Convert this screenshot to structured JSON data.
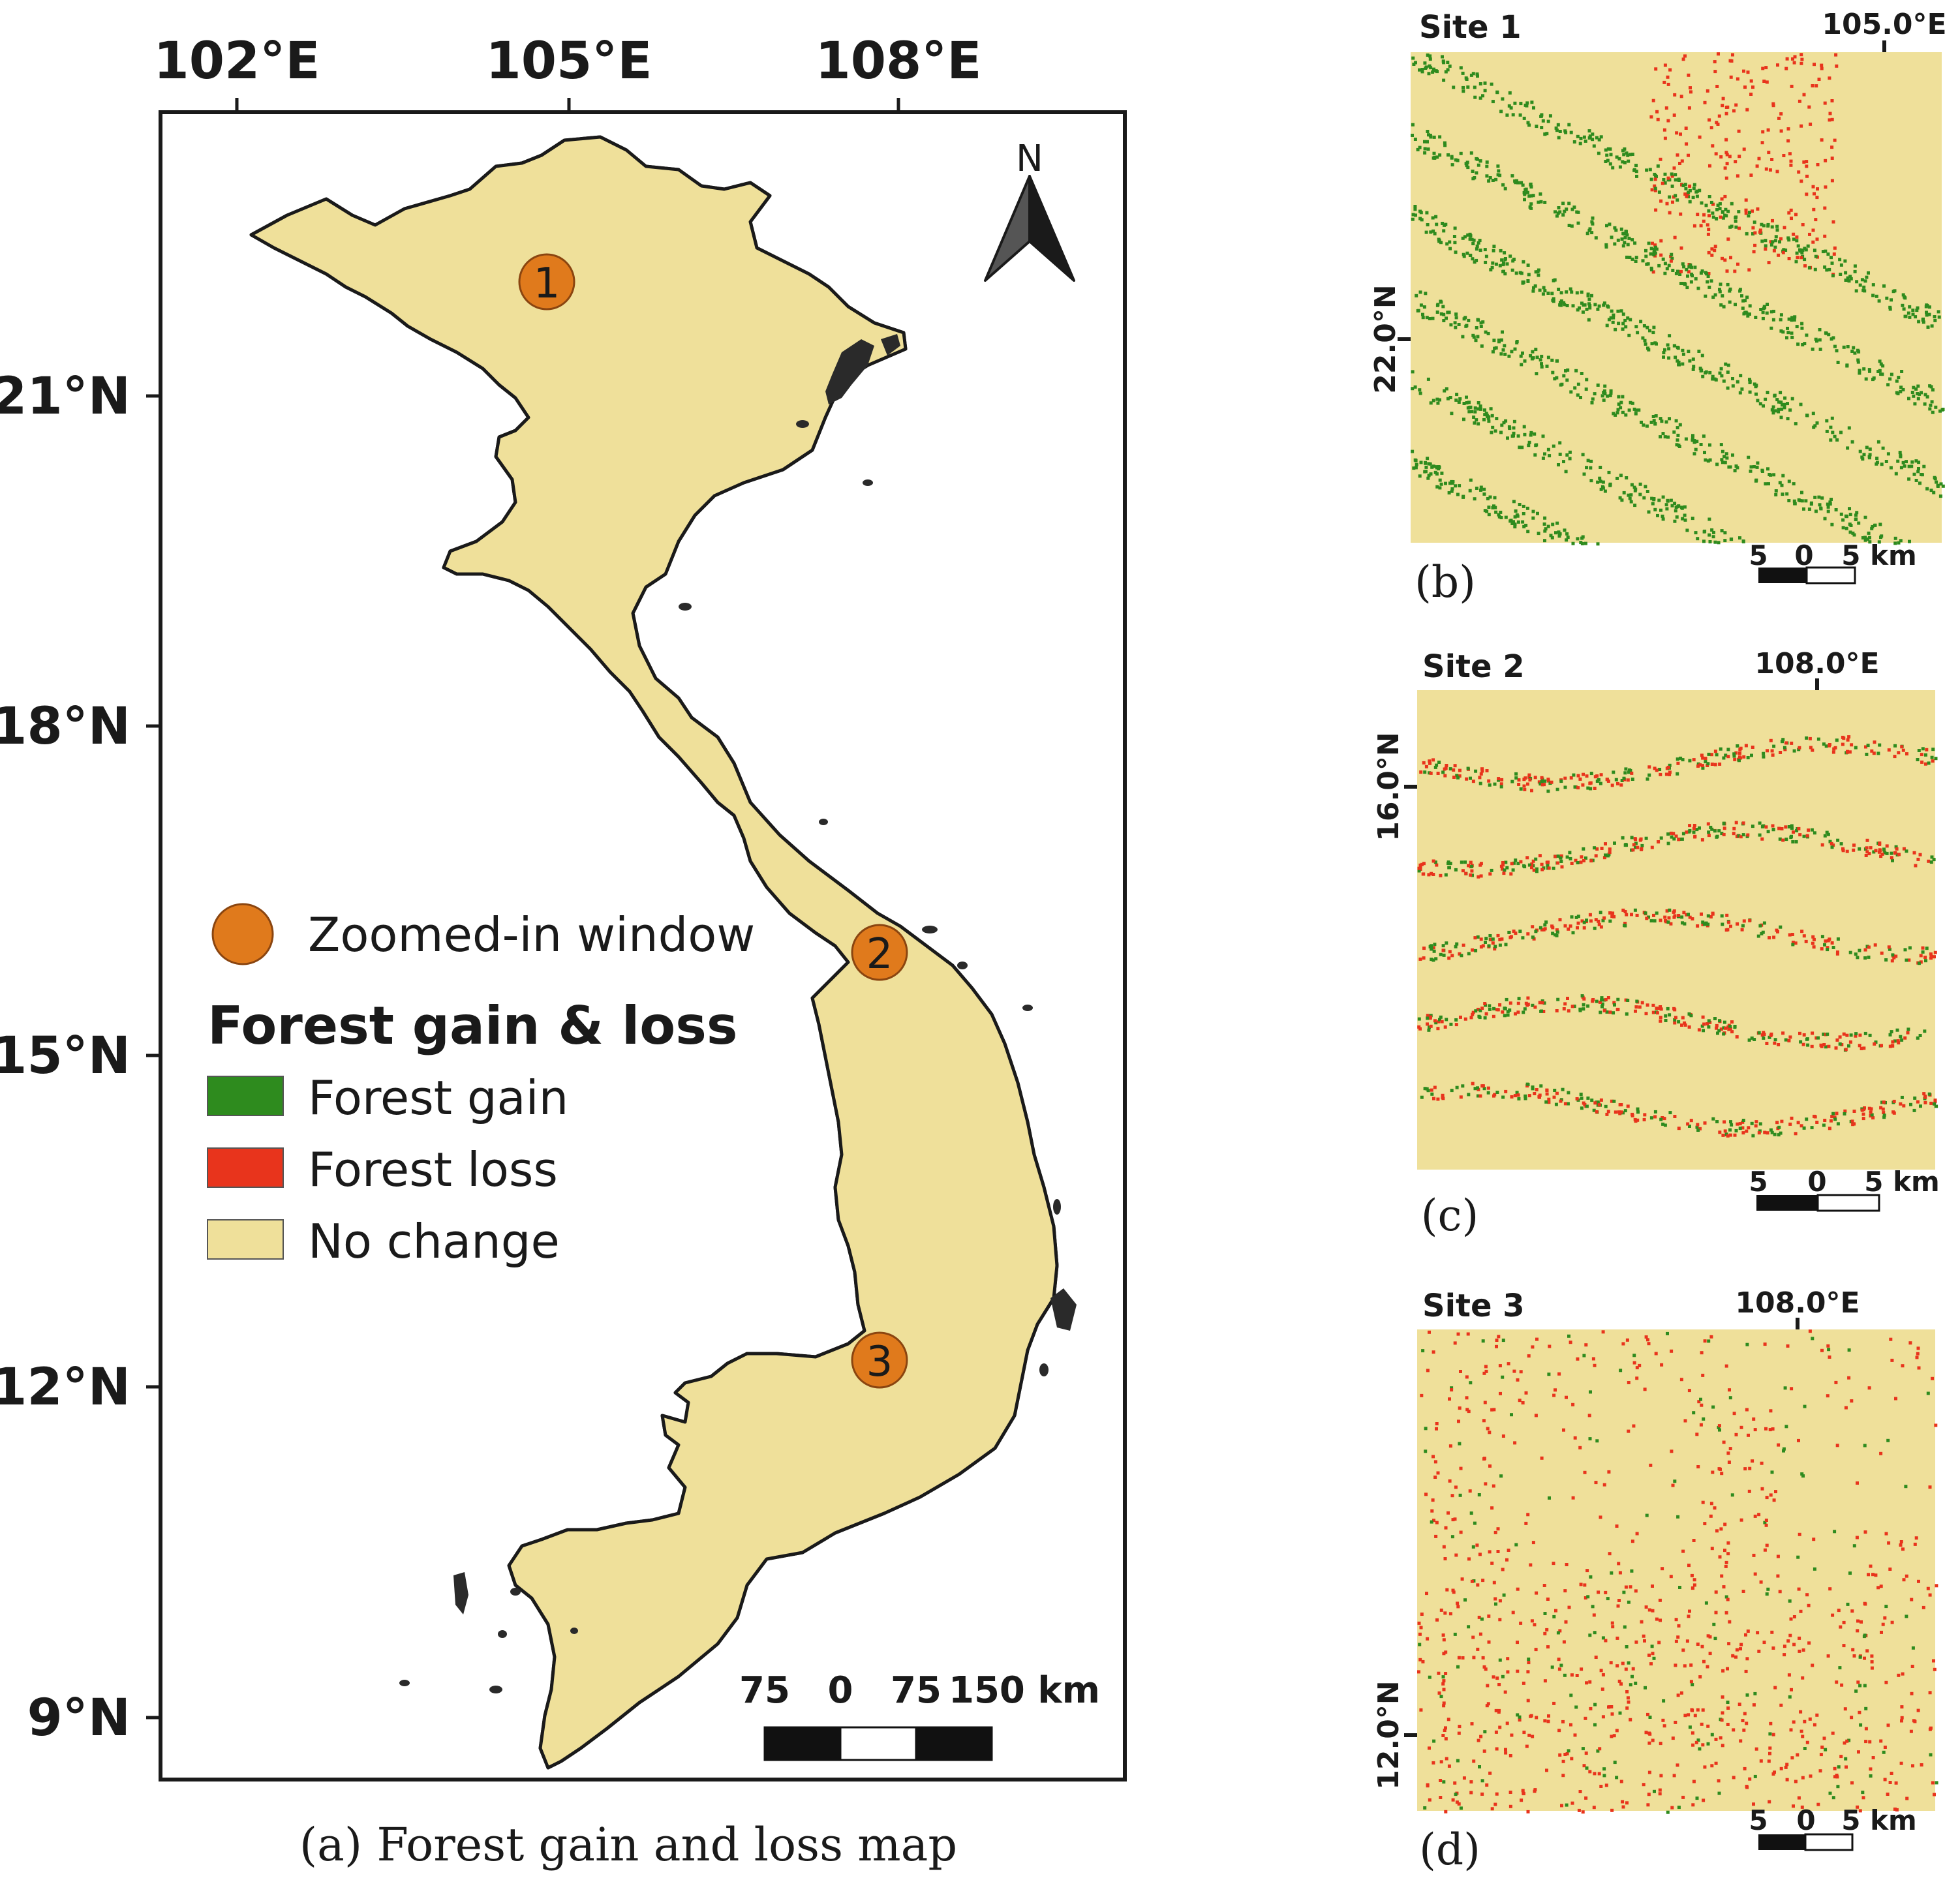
{
  "colors": {
    "no_change": "#efe09a",
    "forest_gain": "#2e8b1e",
    "forest_loss": "#e8341c",
    "marker": "#e07a1c",
    "outline": "#1a1a1a",
    "islands": "#2a2a2a"
  },
  "main_map": {
    "lon_ticks": [
      "102°E",
      "105°E",
      "108°E"
    ],
    "lat_ticks": [
      "21°N",
      "18°N",
      "15°N",
      "12°N",
      "9°N"
    ],
    "north_label": "N",
    "sites": [
      "1",
      "2",
      "3"
    ],
    "scale_labels": [
      "75",
      "0",
      "75",
      "150 km"
    ],
    "caption": "(a) Forest gain and loss map"
  },
  "legend": {
    "marker_label": "Zoomed-in window",
    "title": "Forest gain & loss",
    "items": [
      {
        "label": "Forest gain",
        "color_key": "forest_gain"
      },
      {
        "label": "Forest loss",
        "color_key": "forest_loss"
      },
      {
        "label": "No change",
        "color_key": "no_change"
      }
    ]
  },
  "insets": [
    {
      "title": "Site 1",
      "lon_label": "105.0°E",
      "lat_label": "22.0°N",
      "scale_labels": [
        "5",
        "0",
        "5 km"
      ],
      "caption": "(b)",
      "pattern": "gain"
    },
    {
      "title": "Site 2",
      "lon_label": "108.0°E",
      "lat_label": "16.0°N",
      "scale_labels": [
        "5",
        "0",
        "5 km"
      ],
      "caption": "(c)",
      "pattern": "mixed"
    },
    {
      "title": "Site 3",
      "lon_label": "108.0°E",
      "lat_label": "12.0°N",
      "scale_labels": [
        "5",
        "0",
        "5 km"
      ],
      "caption": "(d)",
      "pattern": "loss"
    }
  ]
}
